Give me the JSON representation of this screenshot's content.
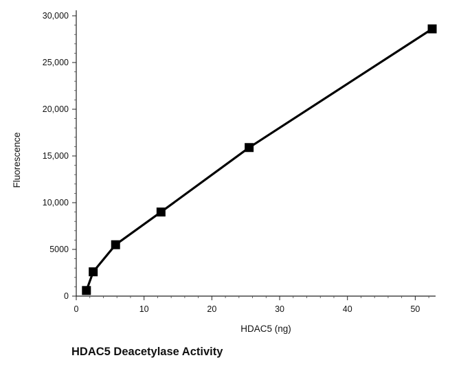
{
  "caption": "HDAC5 Deacetylase Activity",
  "chart_data": {
    "type": "line",
    "title": "",
    "xlabel": "HDAC5 (ng)",
    "ylabel": "Fluorescence",
    "xlim": [
      0,
      53
    ],
    "ylim": [
      0,
      30000
    ],
    "x_ticks": [
      0,
      10,
      20,
      30,
      40,
      50
    ],
    "x_tick_labels": [
      "0",
      "10",
      "20",
      "30",
      "40",
      "50"
    ],
    "y_ticks": [
      0,
      5000,
      10000,
      15000,
      20000,
      25000,
      30000
    ],
    "y_tick_labels": [
      "0",
      "5000",
      "10,000",
      "15,000",
      "20,000",
      "25,000",
      "30,000"
    ],
    "grid": false,
    "legend": "none",
    "marker": "square",
    "color": "#000000",
    "series": [
      {
        "x": [
          1.5,
          2.5,
          5.8,
          12.5,
          25.5,
          52.5
        ],
        "y": [
          600,
          2600,
          5500,
          9000,
          15900,
          28600
        ]
      }
    ]
  }
}
